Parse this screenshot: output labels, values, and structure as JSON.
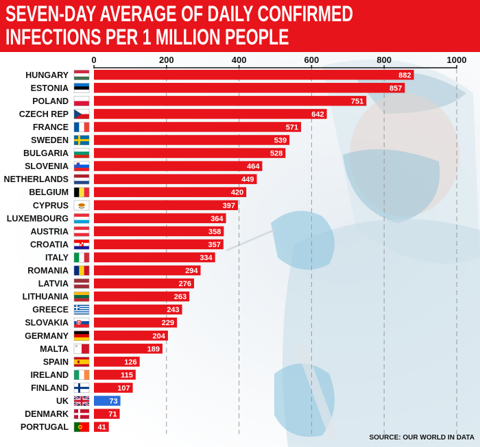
{
  "title": {
    "line1": "SEVEN-DAY AVERAGE OF DAILY CONFIRMED",
    "line2": "INFECTIONS PER 1 MILLION PEOPLE"
  },
  "source": "SOURCE: OUR WORLD IN DATA",
  "colors": {
    "banner": "#e8141b",
    "bar": "#e8141b",
    "highlight_bar": "#2a6edb",
    "text": "#111111"
  },
  "chart_data": {
    "type": "bar",
    "orientation": "horizontal",
    "title": "SEVEN-DAY AVERAGE OF DAILY CONFIRMED INFECTIONS PER 1 MILLION PEOPLE",
    "xlim": [
      0,
      1000
    ],
    "x_ticks": [
      0,
      200,
      400,
      600,
      800,
      1000
    ],
    "x_tick_labels": [
      "0",
      "200",
      "400",
      "600",
      "800",
      "1000"
    ],
    "grid": "vertical dashed",
    "highlight": "UK",
    "categories": [
      "HUNGARY",
      "ESTONIA",
      "POLAND",
      "CZECH REP",
      "FRANCE",
      "SWEDEN",
      "BULGARIA",
      "SLOVENIA",
      "NETHERLANDS",
      "BELGIUM",
      "CYPRUS",
      "LUXEMBOURG",
      "AUSTRIA",
      "CROATIA",
      "ITALY",
      "ROMANIA",
      "LATVIA",
      "LITHUANIA",
      "GREECE",
      "SLOVAKIA",
      "GERMANY",
      "MALTA",
      "SPAIN",
      "IRELAND",
      "FINLAND",
      "UK",
      "DENMARK",
      "PORTUGAL"
    ],
    "values": [
      882,
      857,
      751,
      642,
      571,
      539,
      528,
      464,
      449,
      420,
      397,
      364,
      358,
      357,
      334,
      294,
      276,
      263,
      243,
      229,
      204,
      189,
      126,
      115,
      107,
      73,
      71,
      41
    ],
    "value_labels": [
      "882",
      "857",
      "751",
      "642",
      "571",
      "539",
      "528",
      "464",
      "449",
      "420",
      "397",
      "364",
      "358",
      "357",
      "334",
      "294",
      "276",
      "263",
      "243",
      "229",
      "204",
      "189",
      "126",
      "115",
      "107",
      "73",
      "71",
      "41"
    ],
    "flags": [
      "hungary-flag-icon",
      "estonia-flag-icon",
      "poland-flag-icon",
      "czech-flag-icon",
      "france-flag-icon",
      "sweden-flag-icon",
      "bulgaria-flag-icon",
      "slovenia-flag-icon",
      "netherlands-flag-icon",
      "belgium-flag-icon",
      "cyprus-flag-icon",
      "luxembourg-flag-icon",
      "austria-flag-icon",
      "croatia-flag-icon",
      "italy-flag-icon",
      "romania-flag-icon",
      "latvia-flag-icon",
      "lithuania-flag-icon",
      "greece-flag-icon",
      "slovakia-flag-icon",
      "germany-flag-icon",
      "malta-flag-icon",
      "spain-flag-icon",
      "ireland-flag-icon",
      "finland-flag-icon",
      "uk-flag-icon",
      "denmark-flag-icon",
      "portugal-flag-icon"
    ]
  }
}
